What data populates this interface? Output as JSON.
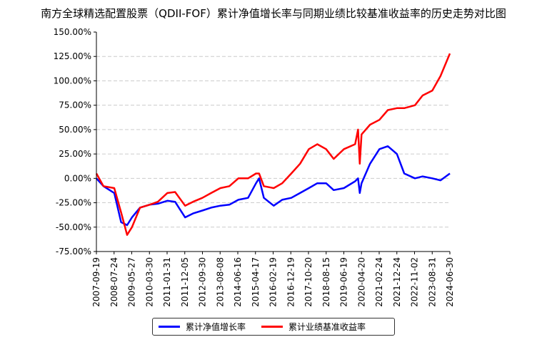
{
  "chart_data": {
    "type": "line",
    "title": "南方全球精选配置股票（QDII-FOF）累计净值增长率与同期业绩比较基准收益率的历史走势对比图",
    "xlabel": "",
    "ylabel": "",
    "ylim": [
      -75,
      150
    ],
    "yticks": [
      "150.00%",
      "125.00%",
      "100.00%",
      "75.00%",
      "50.00%",
      "25.00%",
      "0.00%",
      "-25.00%",
      "-50.00%",
      "-75.00%"
    ],
    "ytick_values": [
      150,
      125,
      100,
      75,
      50,
      25,
      0,
      -25,
      -50,
      -75
    ],
    "xticks": [
      "2007-09-19",
      "2008-07-24",
      "2009-05-27",
      "2010-03-30",
      "2011-01-31",
      "2011-12-05",
      "2012-09-30",
      "2013-08-08",
      "2014-06-16",
      "2015-04-17",
      "2016-02-19",
      "2016-12-19",
      "2017-10-20",
      "2018-08-15",
      "2019-06-19",
      "2020-04-20",
      "2021-02-24",
      "2021-12-24",
      "2022-11-02",
      "2023-08-31",
      "2024-06-30"
    ],
    "grid": "horizontal dashed",
    "legend_placement": "bottom",
    "x": [
      "2007-09-19",
      "2008-01-20",
      "2008-07-24",
      "2008-11-20",
      "2009-03-05",
      "2009-05-27",
      "2009-10-15",
      "2010-03-30",
      "2010-08-20",
      "2011-01-31",
      "2011-06-15",
      "2011-12-05",
      "2012-04-20",
      "2012-09-30",
      "2013-03-01",
      "2013-08-08",
      "2014-01-10",
      "2014-06-16",
      "2014-12-01",
      "2015-04-17",
      "2015-06-10",
      "2015-09-01",
      "2016-02-19",
      "2016-07-15",
      "2016-12-19",
      "2017-05-20",
      "2017-10-20",
      "2018-03-15",
      "2018-08-15",
      "2018-12-25",
      "2019-06-19",
      "2019-12-31",
      "2020-02-20",
      "2020-03-20",
      "2020-04-20",
      "2020-09-15",
      "2021-02-24",
      "2021-07-20",
      "2021-12-24",
      "2022-05-01",
      "2022-11-02",
      "2023-03-15",
      "2023-08-31",
      "2024-01-20",
      "2024-06-30"
    ],
    "series": [
      {
        "name": "累计净值增长率",
        "color": "#0000ff",
        "values": [
          0,
          -8,
          -15,
          -45,
          -48,
          -40,
          -30,
          -27,
          -26,
          -23,
          -24,
          -40,
          -36,
          -33,
          -30,
          -28,
          -27,
          -22,
          -20,
          -5,
          0,
          -20,
          -28,
          -22,
          -20,
          -15,
          -10,
          -5,
          -5,
          -12,
          -10,
          -3,
          0,
          -15,
          -5,
          15,
          30,
          33,
          25,
          5,
          0,
          2,
          0,
          -2,
          5
        ]
      },
      {
        "name": "累计业绩基准收益率",
        "color": "#ff0000",
        "values": [
          5,
          -8,
          -10,
          -35,
          -58,
          -50,
          -30,
          -27,
          -24,
          -15,
          -14,
          -28,
          -24,
          -20,
          -15,
          -10,
          -8,
          0,
          0,
          5,
          5,
          -8,
          -10,
          -5,
          5,
          15,
          30,
          35,
          30,
          20,
          30,
          35,
          50,
          15,
          45,
          55,
          60,
          70,
          72,
          72,
          75,
          85,
          90,
          105,
          128
        ]
      }
    ]
  },
  "legend": {
    "fund": "累计净值增长率",
    "benchmark": "累计业绩基准收益率"
  }
}
